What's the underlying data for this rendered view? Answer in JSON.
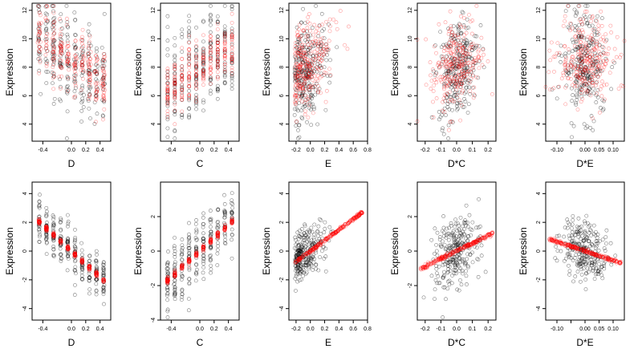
{
  "colors": {
    "observed": "#000000",
    "fitted": "#ff0000",
    "frame": "#000000"
  },
  "chart_data": [
    {
      "type": "scatter",
      "xlabel": "D",
      "ylabel": "Expression",
      "xlim": [
        -0.55,
        0.55
      ],
      "ylim": [
        2.8,
        12.5
      ],
      "xticks": [
        -0.4,
        0.0,
        0.2,
        0.4
      ],
      "xtick_labels": [
        "-0.4",
        "0.0",
        "0.2",
        "0.4"
      ],
      "yticks": [
        4,
        6,
        8,
        10,
        12
      ],
      "ytick_labels": [
        "4",
        "6",
        "8",
        "10",
        "12"
      ],
      "series": [],
      "pattern": "neg_scatter"
    },
    {
      "type": "scatter",
      "xlabel": "C",
      "ylabel": "Expression",
      "xlim": [
        -0.55,
        0.55
      ],
      "ylim": [
        2.8,
        12.5
      ],
      "xticks": [
        -0.4,
        0.0,
        0.2,
        0.4
      ],
      "xtick_labels": [
        "-0.4",
        "0.0",
        "0.2",
        "0.4"
      ],
      "yticks": [
        4,
        6,
        8,
        10,
        12
      ],
      "ytick_labels": [
        "4",
        "6",
        "8",
        "10",
        "12"
      ],
      "series": [],
      "pattern": "pos_discrete"
    },
    {
      "type": "scatter",
      "xlabel": "E",
      "ylabel": "Expression",
      "xlim": [
        -0.3,
        0.8
      ],
      "ylim": [
        2.8,
        12.5
      ],
      "xticks": [
        -0.2,
        0.0,
        0.2,
        0.4,
        0.6,
        0.8
      ],
      "xtick_labels": [
        "-0.2",
        "0.0",
        "0.2",
        "0.4",
        "0.6",
        "0.8"
      ],
      "yticks": [
        4,
        6,
        8,
        10,
        12
      ],
      "ytick_labels": [
        "4",
        "6",
        "8",
        "10",
        "12"
      ],
      "series": [],
      "pattern": "e_scatter"
    },
    {
      "type": "scatter",
      "xlabel": "D*C",
      "ylabel": "Expression",
      "xlim": [
        -0.25,
        0.25
      ],
      "ylim": [
        2.8,
        12.5
      ],
      "xticks": [
        -0.2,
        -0.1,
        0.0,
        0.1,
        0.2
      ],
      "xtick_labels": [
        "-0.2",
        "-0.1",
        "0.0",
        "0.1",
        "0.2"
      ],
      "yticks": [
        4,
        6,
        8,
        10,
        12
      ],
      "ytick_labels": [
        "4",
        "6",
        "8",
        "10",
        "12"
      ],
      "series": [],
      "pattern": "dc_scatter"
    },
    {
      "type": "scatter",
      "xlabel": "D*E",
      "ylabel": "Expression",
      "xlim": [
        -0.14,
        0.14
      ],
      "ylim": [
        2.8,
        12.5
      ],
      "xticks": [
        -0.1,
        -0.05,
        0.0,
        0.05,
        0.1
      ],
      "xtick_labels": [
        "-0.10",
        "",
        "0.00",
        "0.05",
        "0.10"
      ],
      "yticks": [
        4,
        6,
        8,
        10,
        12
      ],
      "ytick_labels": [
        "4",
        "6",
        "8",
        "10",
        "12"
      ],
      "series": [],
      "pattern": "de_scatter"
    },
    {
      "type": "scatter",
      "xlabel": "D",
      "ylabel": "Expression",
      "xlim": [
        -0.55,
        0.55
      ],
      "ylim": [
        -4.8,
        4.8
      ],
      "xticks": [
        -0.4,
        0.0,
        0.2,
        0.4
      ],
      "xtick_labels": [
        "-0.4",
        "0.0",
        "0.2",
        "0.4"
      ],
      "yticks": [
        -4,
        -2,
        0,
        2,
        4
      ],
      "ytick_labels": [
        "-4",
        "-2",
        "0",
        "2",
        "4"
      ],
      "series": [],
      "fit": {
        "slope": -4.5,
        "intercept": 0
      },
      "pattern": "partial_discrete"
    },
    {
      "type": "scatter",
      "xlabel": "C",
      "ylabel": "Expression",
      "xlim": [
        -0.55,
        0.55
      ],
      "ylim": [
        -4.0,
        4.0
      ],
      "xticks": [
        -0.4,
        0.0,
        0.2,
        0.4
      ],
      "xtick_labels": [
        "-0.4",
        "0.0",
        "0.2",
        "0.4"
      ],
      "yticks": [
        -4,
        -2,
        0,
        2
      ],
      "ytick_labels": [
        "-4",
        "-2",
        "0",
        "2"
      ],
      "series": [],
      "fit": {
        "slope": 3.8,
        "intercept": 0
      },
      "pattern": "partial_discrete"
    },
    {
      "type": "scatter",
      "xlabel": "E",
      "ylabel": "Expression",
      "xlim": [
        -0.3,
        0.8
      ],
      "ylim": [
        -4.8,
        4.8
      ],
      "xticks": [
        -0.2,
        0.0,
        0.2,
        0.4,
        0.6,
        0.8
      ],
      "xtick_labels": [
        "-0.2",
        "0.0",
        "0.2",
        "0.4",
        "0.6",
        "0.8"
      ],
      "yticks": [
        -4,
        -2,
        0,
        2,
        4
      ],
      "ytick_labels": [
        "-4",
        "-2",
        "0",
        "2",
        "4"
      ],
      "series": [],
      "fit": {
        "slope": 3.7,
        "intercept": 0
      },
      "pattern": "partial_e"
    },
    {
      "type": "scatter",
      "xlabel": "D*C",
      "ylabel": "Expression",
      "xlim": [
        -0.25,
        0.25
      ],
      "ylim": [
        -4.0,
        4.0
      ],
      "xticks": [
        -0.2,
        -0.1,
        0.0,
        0.1,
        0.2
      ],
      "xtick_labels": [
        "-0.2",
        "-0.1",
        "0.0",
        "0.1",
        "0.2"
      ],
      "yticks": [
        -2,
        0,
        2
      ],
      "ytick_labels": [
        "-2",
        "0",
        "2"
      ],
      "series": [],
      "fit": {
        "slope": 4.5,
        "intercept": 0
      },
      "pattern": "partial_cont"
    },
    {
      "type": "scatter",
      "xlabel": "D*E",
      "ylabel": "Expression",
      "xlim": [
        -0.14,
        0.14
      ],
      "ylim": [
        -4.8,
        4.8
      ],
      "xticks": [
        -0.1,
        -0.05,
        0.0,
        0.05,
        0.1
      ],
      "xtick_labels": [
        "-0.10",
        "",
        "0.00",
        "0.05",
        "0.10"
      ],
      "yticks": [
        -4,
        -2,
        0,
        2,
        4
      ],
      "ytick_labels": [
        "-4",
        "-2",
        "0",
        "2",
        "4"
      ],
      "series": [],
      "fit": {
        "slope": -6.5,
        "intercept": 0
      },
      "pattern": "partial_cont"
    }
  ]
}
